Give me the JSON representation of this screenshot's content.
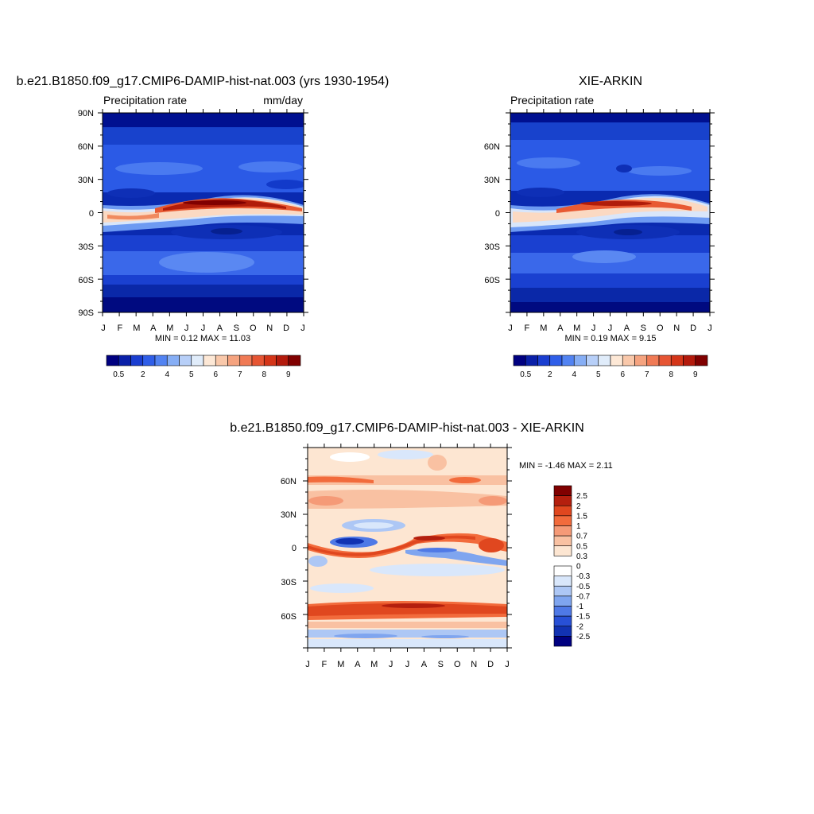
{
  "panels": [
    {
      "title": "b.e21.B1850.f09_g17.CMIP6-DAMIP-hist-nat.003 (yrs 1930-1954)",
      "left_label": "Precipitation rate",
      "right_label": "mm/day",
      "stats": "MIN =   0.12 MAX =  11.03",
      "yticks": [
        "90N",
        "60N",
        "30N",
        "0",
        "30S",
        "60S",
        "90S"
      ]
    },
    {
      "title": "XIE-ARKIN",
      "left_label": "Precipitation rate",
      "right_label": "",
      "stats": "MIN =   0.19 MAX =   9.15",
      "yticks": [
        "60N",
        "30N",
        "0",
        "30S",
        "60S"
      ]
    },
    {
      "title": "b.e21.B1850.f09_g17.CMIP6-DAMIP-hist-nat.003 - XIE-ARKIN",
      "left_label": "",
      "right_label": "",
      "stats": "MIN =  -1.46 MAX =   2.11",
      "yticks": [
        "60N",
        "30N",
        "0",
        "30S",
        "60S"
      ]
    }
  ],
  "xticks": [
    "J",
    "F",
    "M",
    "A",
    "M",
    "J",
    "J",
    "A",
    "S",
    "O",
    "N",
    "D",
    "J"
  ],
  "colorbars": {
    "precip": {
      "colors": [
        "#000080",
        "#0a20a8",
        "#1a3ed0",
        "#2f5ee8",
        "#5283f2",
        "#86aef5",
        "#b7cff8",
        "#e0ecfa",
        "#fde8d6",
        "#f9c8aa",
        "#f5a37f",
        "#f07a55",
        "#e65533",
        "#d43518",
        "#b31a0c",
        "#800000"
      ],
      "labels": [
        "0.5",
        "2",
        "4",
        "5",
        "6",
        "7",
        "8",
        "9"
      ]
    },
    "diff": {
      "colors_top_to_bottom": [
        "#800000",
        "#b41f0e",
        "#e0471f",
        "#f26b3c",
        "#f59a77",
        "#f9c1a2",
        "#fde6d2",
        "#ffffff",
        "#d9e7fb",
        "#adc7f5",
        "#7fa5ef",
        "#4f79e6",
        "#2850d6",
        "#1232b2",
        "#000080"
      ],
      "labels": [
        "2.5",
        "2",
        "1.5",
        "1",
        "0.7",
        "0.5",
        "0.3",
        "0",
        "-0.3",
        "-0.5",
        "-0.7",
        "-1",
        "-1.5",
        "-2",
        "-2.5"
      ]
    }
  },
  "chart_data": [
    {
      "type": "heatmap",
      "title": "b.e21.B1850.f09_g17.CMIP6-DAMIP-hist-nat.003 (yrs 1930-1954)",
      "variable": "Precipitation rate",
      "units": "mm/day",
      "x": [
        "J",
        "F",
        "M",
        "A",
        "M",
        "J",
        "J",
        "A",
        "S",
        "O",
        "N",
        "D",
        "J"
      ],
      "y_ticks": [
        "90N",
        "60N",
        "30N",
        "0",
        "30S",
        "60S",
        "90S"
      ],
      "ylim": [
        -90,
        90
      ],
      "min": 0.12,
      "max": 11.03,
      "features": {
        "itcz_peak_month": "A",
        "itcz_peak_value": 10,
        "itcz_lat_range": [
          -5,
          10
        ]
      }
    },
    {
      "type": "heatmap",
      "title": "XIE-ARKIN",
      "variable": "Precipitation rate",
      "x": [
        "J",
        "F",
        "M",
        "A",
        "M",
        "J",
        "J",
        "A",
        "S",
        "O",
        "N",
        "D",
        "J"
      ],
      "y_ticks": [
        "60N",
        "30N",
        "0",
        "30S",
        "60S"
      ],
      "ylim": [
        -90,
        90
      ],
      "min": 0.19,
      "max": 9.15,
      "features": {
        "itcz_peak_month": "A",
        "itcz_peak_value": 8.5,
        "itcz_lat_range": [
          -5,
          10
        ]
      }
    },
    {
      "type": "heatmap",
      "title": "b.e21.B1850.f09_g17.CMIP6-DAMIP-hist-nat.003 - XIE-ARKIN",
      "x": [
        "J",
        "F",
        "M",
        "A",
        "M",
        "J",
        "J",
        "A",
        "S",
        "O",
        "N",
        "D",
        "J"
      ],
      "y_ticks": [
        "60N",
        "30N",
        "0",
        "30S",
        "60S"
      ],
      "ylim": [
        -90,
        90
      ],
      "min": -1.46,
      "max": 2.11
    }
  ]
}
